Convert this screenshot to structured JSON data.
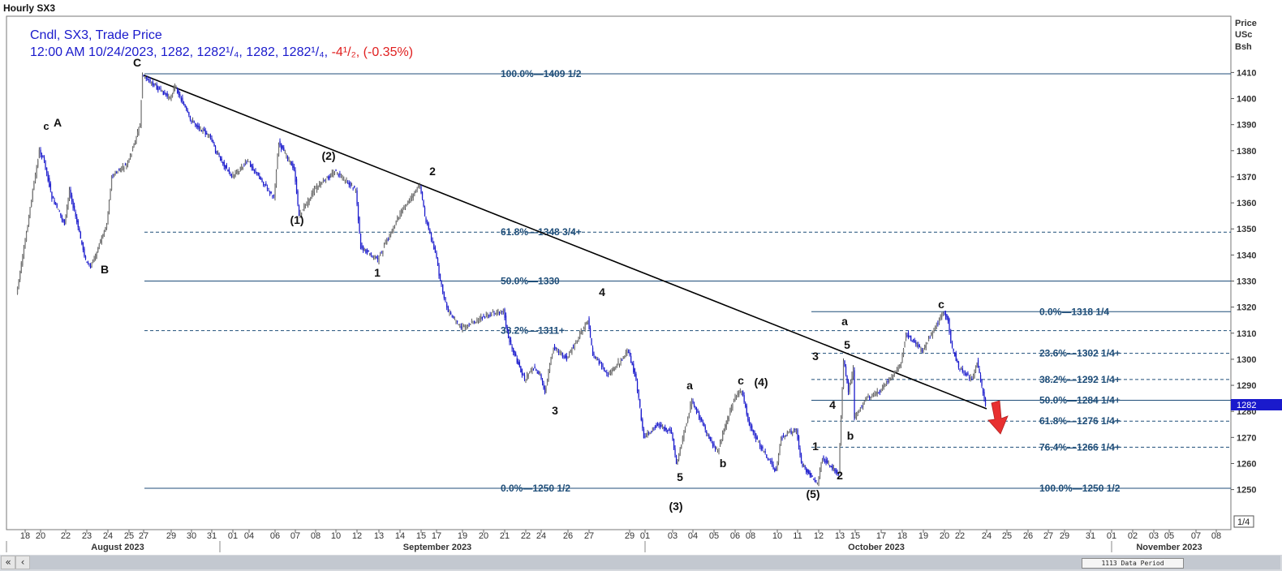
{
  "window_title": "Hourly SX3",
  "header": {
    "line1": "Cndl, SX3, Trade Price",
    "line2_prefix": "12:00 AM 10/24/2023, 1282, 1282¹/₄, 1282, 1282¹/₄, ",
    "line2_change": "-4¹/₂, (-0.35%)"
  },
  "price_axis": {
    "title": [
      "Price",
      "USc",
      "Bsh"
    ],
    "last_price_tag": "1282",
    "scale_button": "1/4"
  },
  "scrollbar": {
    "left_button": "«",
    "prev_button": "‹",
    "data_period": "1113 Data Period"
  },
  "colors": {
    "candles": "#1a1acc",
    "fib_lines": "#1f4e79",
    "fib_text": "#1f4e79",
    "header_text": "#1a1acc",
    "change_text": "#e02020",
    "trendline": "#000000",
    "arrow": "#e83030",
    "last_price_tag": "#1a1acc"
  },
  "chart_data": {
    "type": "candlestick",
    "symbol": "SX3",
    "interval": "Hourly",
    "ylim": [
      1240,
      1420
    ],
    "y_ticks": [
      1250,
      1260,
      1270,
      1280,
      1290,
      1300,
      1310,
      1320,
      1330,
      1340,
      1350,
      1360,
      1370,
      1380,
      1390,
      1400,
      1410
    ],
    "x_date_labels": [
      "18",
      "20",
      "22",
      "23",
      "24",
      "25",
      "27",
      "29",
      "30",
      "31",
      "01",
      "04",
      "06",
      "07",
      "08",
      "10",
      "12",
      "13",
      "14",
      "15",
      "17",
      "19",
      "20",
      "21",
      "22",
      "24",
      "26",
      "27",
      "29",
      "01",
      "03",
      "04",
      "05",
      "06",
      "08",
      "10",
      "11",
      "12",
      "13",
      "15",
      "17",
      "18",
      "19",
      "20",
      "22",
      "24",
      "25",
      "26",
      "27",
      "29",
      "31",
      "01",
      "02",
      "03",
      "05",
      "07",
      "08"
    ],
    "month_labels": [
      "August 2023",
      "September 2023",
      "October 2023",
      "November 2023"
    ],
    "price_path": [
      {
        "date": "2023-08-17",
        "price": 1325
      },
      {
        "date": "2023-08-18",
        "price": 1342
      },
      {
        "date": "2023-08-18",
        "price": 1355
      },
      {
        "date": "2023-08-20",
        "price": 1380
      },
      {
        "date": "2023-08-20",
        "price": 1376
      },
      {
        "date": "2023-08-21",
        "price": 1362
      },
      {
        "date": "2023-08-22",
        "price": 1352
      },
      {
        "date": "2023-08-22",
        "price": 1365
      },
      {
        "date": "2023-08-23",
        "price": 1338
      },
      {
        "date": "2023-08-23",
        "price": 1335
      },
      {
        "date": "2023-08-24",
        "price": 1352
      },
      {
        "date": "2023-08-24",
        "price": 1370
      },
      {
        "date": "2023-08-25",
        "price": 1375
      },
      {
        "date": "2023-08-26",
        "price": 1384
      },
      {
        "date": "2023-08-26",
        "price": 1390
      },
      {
        "date": "2023-08-27",
        "price": 1409
      },
      {
        "date": "2023-08-29",
        "price": 1400
      },
      {
        "date": "2023-08-29",
        "price": 1405
      },
      {
        "date": "2023-08-30",
        "price": 1392
      },
      {
        "date": "2023-08-31",
        "price": 1385
      },
      {
        "date": "2023-08-31",
        "price": 1380
      },
      {
        "date": "2023-09-01",
        "price": 1370
      },
      {
        "date": "2023-09-04",
        "price": 1376
      },
      {
        "date": "2023-09-06",
        "price": 1362
      },
      {
        "date": "2023-09-06",
        "price": 1383
      },
      {
        "date": "2023-09-07",
        "price": 1373
      },
      {
        "date": "2023-09-07",
        "price": 1355
      },
      {
        "date": "2023-09-08",
        "price": 1365
      },
      {
        "date": "2023-09-10",
        "price": 1372
      },
      {
        "date": "2023-09-12",
        "price": 1365
      },
      {
        "date": "2023-09-12",
        "price": 1343
      },
      {
        "date": "2023-09-13",
        "price": 1338
      },
      {
        "date": "2023-09-14",
        "price": 1355
      },
      {
        "date": "2023-09-15",
        "price": 1367
      },
      {
        "date": "2023-09-15",
        "price": 1355
      },
      {
        "date": "2023-09-17",
        "price": 1341
      },
      {
        "date": "2023-09-17",
        "price": 1330
      },
      {
        "date": "2023-09-18",
        "price": 1318
      },
      {
        "date": "2023-09-19",
        "price": 1312
      },
      {
        "date": "2023-09-20",
        "price": 1316
      },
      {
        "date": "2023-09-21",
        "price": 1319
      },
      {
        "date": "2023-09-21",
        "price": 1308
      },
      {
        "date": "2023-09-22",
        "price": 1292
      },
      {
        "date": "2023-09-23",
        "price": 1297
      },
      {
        "date": "2023-09-24",
        "price": 1294
      },
      {
        "date": "2023-09-24",
        "price": 1287
      },
      {
        "date": "2023-09-25",
        "price": 1305
      },
      {
        "date": "2023-09-26",
        "price": 1300
      },
      {
        "date": "2023-09-27",
        "price": 1315
      },
      {
        "date": "2023-09-27",
        "price": 1302
      },
      {
        "date": "2023-09-28",
        "price": 1294
      },
      {
        "date": "2023-09-29",
        "price": 1303
      },
      {
        "date": "2023-09-30",
        "price": 1292
      },
      {
        "date": "2023-10-01",
        "price": 1270
      },
      {
        "date": "2023-10-02",
        "price": 1275
      },
      {
        "date": "2023-10-03",
        "price": 1272
      },
      {
        "date": "2023-10-03",
        "price": 1260
      },
      {
        "date": "2023-10-04",
        "price": 1284
      },
      {
        "date": "2023-10-04",
        "price": 1280
      },
      {
        "date": "2023-10-05",
        "price": 1267
      },
      {
        "date": "2023-10-05",
        "price": 1265
      },
      {
        "date": "2023-10-06",
        "price": 1285
      },
      {
        "date": "2023-10-07",
        "price": 1288
      },
      {
        "date": "2023-10-08",
        "price": 1275
      },
      {
        "date": "2023-10-09",
        "price": 1265
      },
      {
        "date": "2023-10-10",
        "price": 1257
      },
      {
        "date": "2023-10-10",
        "price": 1270
      },
      {
        "date": "2023-10-11",
        "price": 1273
      },
      {
        "date": "2023-10-11",
        "price": 1260
      },
      {
        "date": "2023-10-12",
        "price": 1252
      },
      {
        "date": "2023-10-12",
        "price": 1262
      },
      {
        "date": "2023-10-13",
        "price": 1256
      },
      {
        "date": "2023-10-13",
        "price": 1300
      },
      {
        "date": "2023-10-13",
        "price": 1288
      },
      {
        "date": "2023-10-14",
        "price": 1296
      },
      {
        "date": "2023-10-15",
        "price": 1278
      },
      {
        "date": "2023-10-16",
        "price": 1285
      },
      {
        "date": "2023-10-17",
        "price": 1288
      },
      {
        "date": "2023-10-18",
        "price": 1298
      },
      {
        "date": "2023-10-18",
        "price": 1310
      },
      {
        "date": "2023-10-19",
        "price": 1303
      },
      {
        "date": "2023-10-20",
        "price": 1318
      },
      {
        "date": "2023-10-20",
        "price": 1315
      },
      {
        "date": "2023-10-21",
        "price": 1306
      },
      {
        "date": "2023-10-22",
        "price": 1297
      },
      {
        "date": "2023-10-23",
        "price": 1292
      },
      {
        "date": "2023-10-23",
        "price": 1299
      },
      {
        "date": "2023-10-24",
        "price": 1282
      }
    ],
    "trendline": {
      "start": {
        "date": "2023-08-27",
        "price": 1409
      },
      "end": {
        "date": "2023-10-24",
        "price": 1281
      }
    },
    "fib_sets": [
      {
        "levels": [
          {
            "label": "100.0%",
            "value": "1409 1/2",
            "price": 1409.5,
            "style": "solid"
          },
          {
            "label": "61.8%",
            "value": "1348 3/4+",
            "price": 1348.75,
            "style": "dashed"
          },
          {
            "label": "50.0%",
            "value": "1330",
            "price": 1330,
            "style": "solid"
          },
          {
            "label": "38.2%",
            "value": "1311+",
            "price": 1311,
            "style": "dashed"
          },
          {
            "label": "0.0%",
            "value": "1250 1/2",
            "price": 1250.5,
            "style": "solid"
          }
        ]
      },
      {
        "levels": [
          {
            "label": "0.0%",
            "value": "1318 1/4",
            "price": 1318.25,
            "style": "solid"
          },
          {
            "label": "23.6%",
            "value": "1302 1/4+",
            "price": 1302.25,
            "style": "dashed"
          },
          {
            "label": "38.2%",
            "value": "1292 1/4+",
            "price": 1292.25,
            "style": "dashed"
          },
          {
            "label": "50.0%",
            "value": "1284 1/4+",
            "price": 1284.25,
            "style": "solid"
          },
          {
            "label": "61.8%",
            "value": "1276 1/4+",
            "price": 1276.25,
            "style": "dashed"
          },
          {
            "label": "76.4%",
            "value": "1266 1/4+",
            "price": 1266.25,
            "style": "dashed"
          },
          {
            "label": "100.0%",
            "value": "1250 1/2",
            "price": 1250.5,
            "style": "solid"
          }
        ]
      }
    ],
    "wave_labels": [
      {
        "text": "c",
        "date": "2023-08-20",
        "price": 1391,
        "small": true
      },
      {
        "text": "A",
        "date": "2023-08-20",
        "price": 1392
      },
      {
        "text": "B",
        "date": "2023-08-24",
        "price": 1331
      },
      {
        "text": "C",
        "date": "2023-08-26",
        "price": 1412
      },
      {
        "text": "(2)",
        "date": "2023-09-08",
        "price": 1377
      },
      {
        "text": "2",
        "date": "2023-09-15",
        "price": 1370
      },
      {
        "text": "(1)",
        "date": "2023-09-07",
        "price": 1351
      },
      {
        "text": "1",
        "date": "2023-09-13",
        "price": 1330
      },
      {
        "text": "4",
        "date": "2023-09-27",
        "price": 1323
      },
      {
        "text": "3",
        "date": "2023-09-24",
        "price": 1281
      },
      {
        "text": "a",
        "date": "2023-10-04",
        "price": 1286
      },
      {
        "text": "c",
        "date": "2023-10-06",
        "price": 1290
      },
      {
        "text": "(4)",
        "date": "2023-10-07",
        "price": 1290
      },
      {
        "text": "b",
        "date": "2023-10-06",
        "price": 1262
      },
      {
        "text": "5",
        "date": "2023-10-03",
        "price": 1252
      },
      {
        "text": "(3)",
        "date": "2023-10-03",
        "price": 1242
      },
      {
        "text": "1",
        "date": "2023-10-12",
        "price": 1266
      },
      {
        "text": "2",
        "date": "2023-10-13",
        "price": 1253
      },
      {
        "text": "(5)",
        "date": "2023-10-12",
        "price": 1246
      },
      {
        "text": "3",
        "date": "2023-10-12",
        "price": 1300
      },
      {
        "text": "4",
        "date": "2023-10-13",
        "price": 1283
      },
      {
        "text": "5",
        "date": "2023-10-14",
        "price": 1303
      },
      {
        "text": "a",
        "date": "2023-10-14",
        "price": 1313
      },
      {
        "text": "b",
        "date": "2023-10-15",
        "price": 1270
      },
      {
        "text": "c",
        "date": "2023-10-20",
        "price": 1320
      }
    ]
  }
}
